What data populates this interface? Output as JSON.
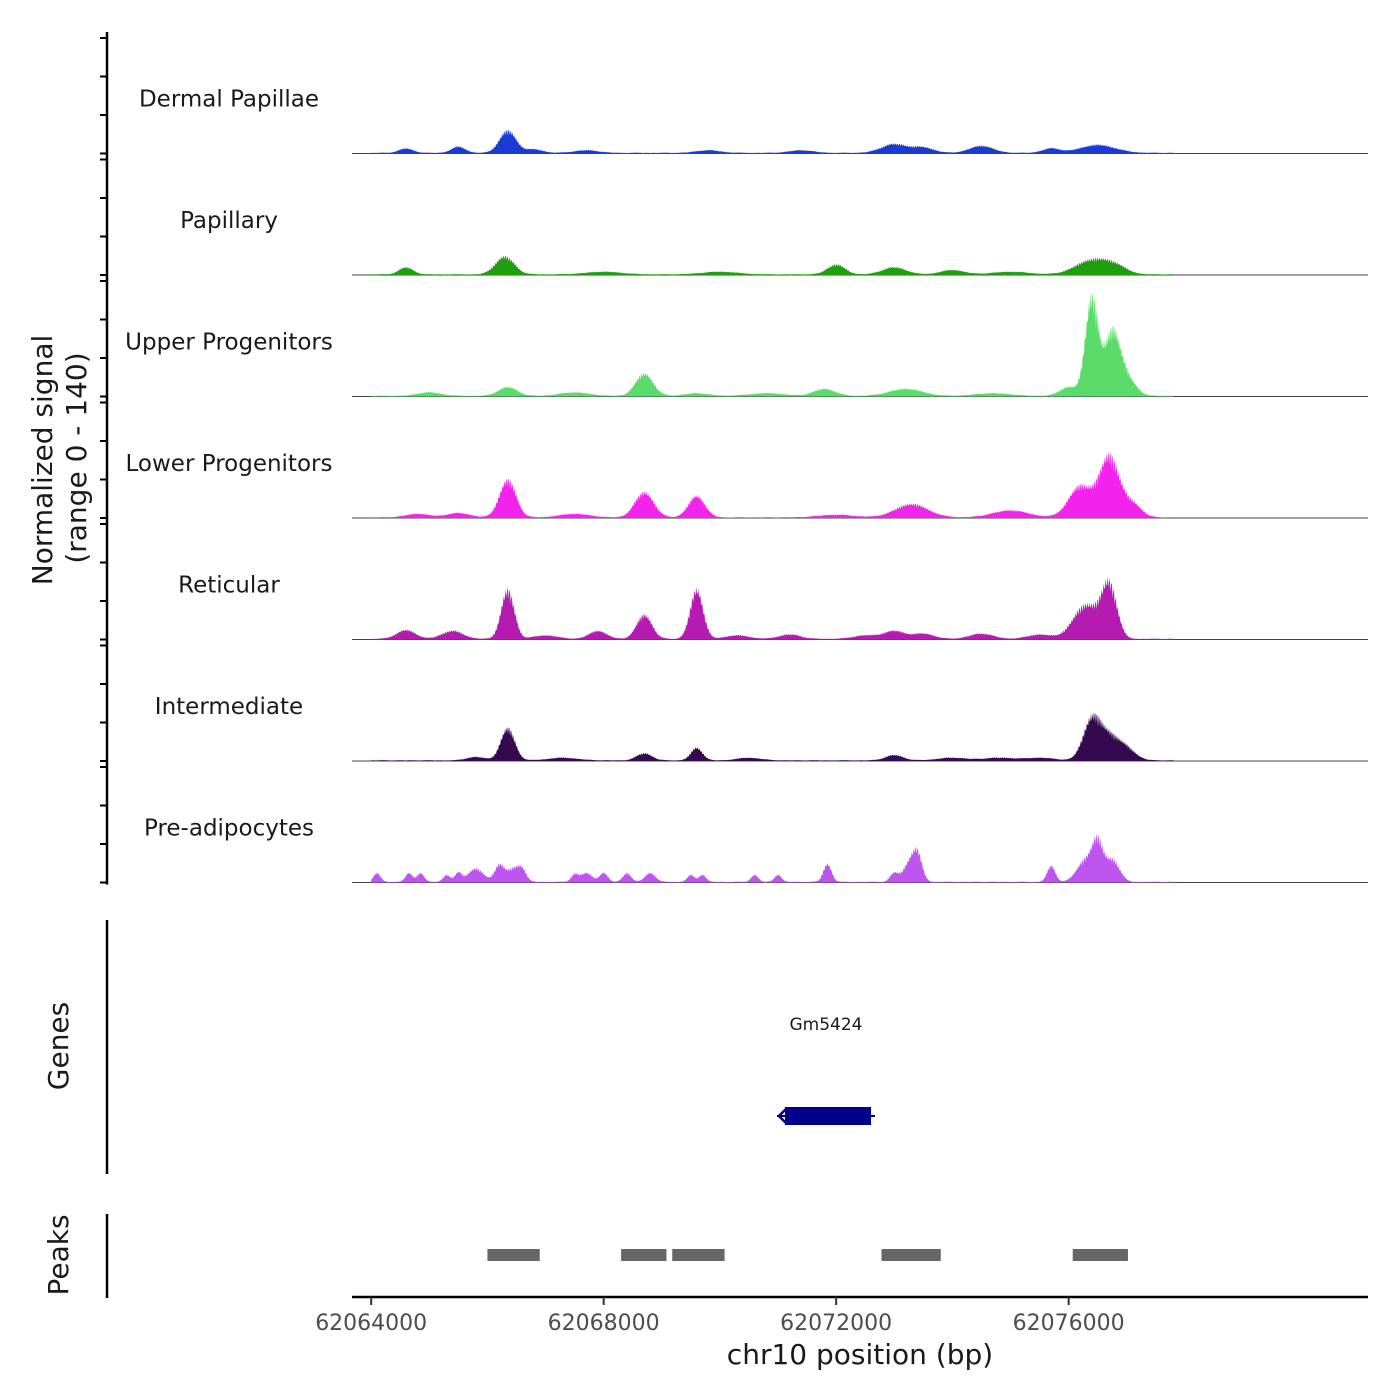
{
  "chart_data": {
    "type": "area",
    "title": "",
    "xlabel": "chr10 position (bp)",
    "ylabel": "Normalized signal",
    "ylabel_sub": "(range 0 - 140)",
    "xlim": [
      62063670,
      62081150
    ],
    "x_ticks": [
      62064000,
      62068000,
      62072000,
      62076000
    ],
    "x_tick_labels": [
      "62064000",
      "62068000",
      "62072000",
      "62076000"
    ],
    "ylim": [
      0,
      140
    ],
    "signal_extent": [
      62064000,
      62077800
    ],
    "series": [
      {
        "name": "Dermal Papillae",
        "color": "#1a3ad4",
        "peaks": [
          [
            62064600,
            5,
            120
          ],
          [
            62065500,
            7,
            120
          ],
          [
            62066350,
            25,
            140
          ],
          [
            62066800,
            4,
            150
          ],
          [
            62067700,
            3,
            200
          ],
          [
            62069800,
            3,
            200
          ],
          [
            62071400,
            3,
            200
          ],
          [
            62073000,
            10,
            220
          ],
          [
            62073500,
            6,
            180
          ],
          [
            62074500,
            8,
            200
          ],
          [
            62075700,
            5,
            150
          ],
          [
            62076500,
            9,
            300
          ]
        ]
      },
      {
        "name": "Papillary",
        "color": "#1f9e10",
        "peaks": [
          [
            62064600,
            8,
            120
          ],
          [
            62066300,
            20,
            160
          ],
          [
            62068000,
            3,
            300
          ],
          [
            62070000,
            3,
            300
          ],
          [
            62072000,
            11,
            150
          ],
          [
            62073000,
            8,
            200
          ],
          [
            62074000,
            5,
            200
          ],
          [
            62075000,
            3,
            300
          ],
          [
            62076400,
            16,
            280
          ],
          [
            62076800,
            8,
            200
          ]
        ]
      },
      {
        "name": "Upper Progenitors",
        "color": "#5adb6a",
        "peaks": [
          [
            62065000,
            4,
            200
          ],
          [
            62066350,
            10,
            160
          ],
          [
            62067500,
            4,
            250
          ],
          [
            62068700,
            25,
            150
          ],
          [
            62069600,
            3,
            200
          ],
          [
            62070800,
            3,
            300
          ],
          [
            62071800,
            8,
            180
          ],
          [
            62073200,
            8,
            280
          ],
          [
            62074700,
            3,
            300
          ],
          [
            62076000,
            10,
            150
          ],
          [
            62076400,
            110,
            110
          ],
          [
            62076750,
            70,
            130
          ],
          [
            62077000,
            20,
            150
          ]
        ]
      },
      {
        "name": "Lower Progenitors",
        "color": "#f223ea",
        "peaks": [
          [
            62064800,
            4,
            200
          ],
          [
            62065500,
            5,
            200
          ],
          [
            62066350,
            42,
            140
          ],
          [
            62067500,
            4,
            250
          ],
          [
            62068700,
            28,
            160
          ],
          [
            62069600,
            24,
            140
          ],
          [
            62072000,
            3,
            300
          ],
          [
            62073300,
            15,
            280
          ],
          [
            62075000,
            8,
            300
          ],
          [
            62076200,
            35,
            200
          ],
          [
            62076700,
            68,
            170
          ],
          [
            62077100,
            15,
            150
          ]
        ]
      },
      {
        "name": "Reticular",
        "color": "#b61bb1",
        "peaks": [
          [
            62064600,
            10,
            160
          ],
          [
            62065400,
            9,
            180
          ],
          [
            62066350,
            55,
            110
          ],
          [
            62067000,
            4,
            200
          ],
          [
            62067900,
            9,
            150
          ],
          [
            62068700,
            27,
            130
          ],
          [
            62069600,
            55,
            110
          ],
          [
            62070300,
            4,
            200
          ],
          [
            62071200,
            5,
            180
          ],
          [
            62072500,
            4,
            200
          ],
          [
            62073000,
            9,
            180
          ],
          [
            62073500,
            6,
            180
          ],
          [
            62074500,
            6,
            200
          ],
          [
            62075500,
            5,
            200
          ],
          [
            62076300,
            38,
            220
          ],
          [
            62076700,
            58,
            130
          ]
        ]
      },
      {
        "name": "Intermediate",
        "color": "#34094e",
        "peaks": [
          [
            62065800,
            4,
            150
          ],
          [
            62066350,
            36,
            120
          ],
          [
            62067300,
            3,
            250
          ],
          [
            62068700,
            8,
            130
          ],
          [
            62069600,
            14,
            100
          ],
          [
            62070500,
            3,
            200
          ],
          [
            62073000,
            6,
            150
          ],
          [
            62074000,
            3,
            250
          ],
          [
            62074800,
            3,
            250
          ],
          [
            62075500,
            3,
            250
          ],
          [
            62076400,
            45,
            150
          ],
          [
            62076700,
            25,
            170
          ],
          [
            62077000,
            12,
            160
          ]
        ]
      },
      {
        "name": "Pre-adipocytes",
        "color": "#bd55ee",
        "peaks": [
          [
            62064100,
            10,
            60
          ],
          [
            62064650,
            10,
            60
          ],
          [
            62064850,
            10,
            60
          ],
          [
            62065300,
            8,
            60
          ],
          [
            62065500,
            10,
            60
          ],
          [
            62065800,
            15,
            130
          ],
          [
            62066200,
            18,
            80
          ],
          [
            62066450,
            15,
            120
          ],
          [
            62066600,
            10,
            70
          ],
          [
            62067500,
            8,
            60
          ],
          [
            62067700,
            10,
            100
          ],
          [
            62068000,
            10,
            70
          ],
          [
            62068400,
            10,
            70
          ],
          [
            62068800,
            10,
            90
          ],
          [
            62069500,
            8,
            60
          ],
          [
            62069700,
            8,
            60
          ],
          [
            62070600,
            8,
            60
          ],
          [
            62071000,
            8,
            60
          ],
          [
            62071850,
            20,
            70
          ],
          [
            62073000,
            10,
            70
          ],
          [
            62073250,
            20,
            100
          ],
          [
            62073400,
            30,
            80
          ],
          [
            62075700,
            18,
            70
          ],
          [
            62076300,
            25,
            150
          ],
          [
            62076500,
            38,
            90
          ],
          [
            62076750,
            25,
            120
          ]
        ]
      }
    ],
    "genes": [
      {
        "name": "Gm5424",
        "start": 62071050,
        "end": 62072600,
        "strand": "-",
        "color": "#00008b"
      }
    ],
    "peaks_track": {
      "label": "Peaks",
      "color": "#666666",
      "regions": [
        [
          62066000,
          62066900
        ],
        [
          62068300,
          62069080
        ],
        [
          62069180,
          62070080
        ],
        [
          62072780,
          62073800
        ],
        [
          62076070,
          62077020
        ]
      ]
    },
    "genes_label": "Genes"
  }
}
